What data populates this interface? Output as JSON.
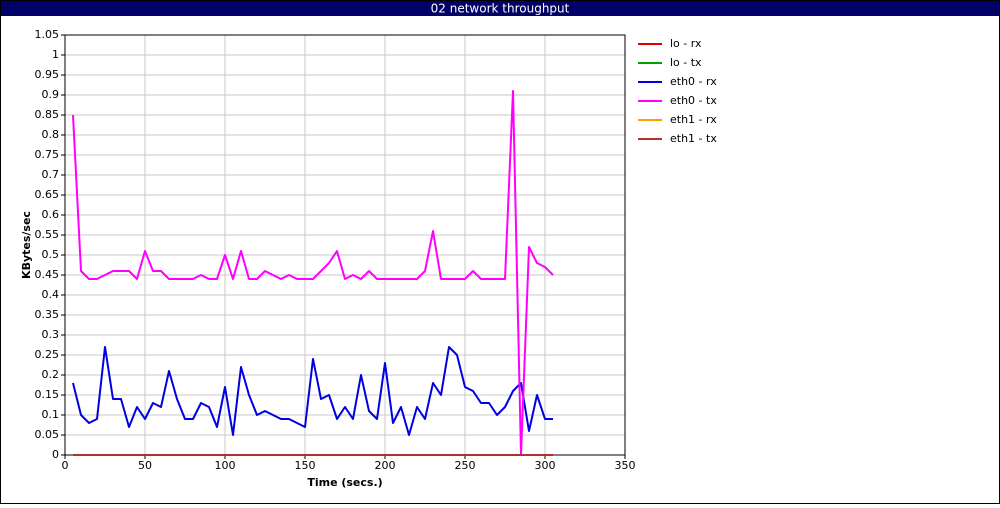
{
  "chart_data": {
    "type": "line",
    "title": "02 network throughput",
    "x_label": "Time (secs.)",
    "y_label": "KBytes/sec",
    "x": [
      5,
      10,
      15,
      20,
      25,
      30,
      35,
      40,
      45,
      50,
      55,
      60,
      65,
      70,
      75,
      80,
      85,
      90,
      95,
      100,
      105,
      110,
      115,
      120,
      125,
      130,
      135,
      140,
      145,
      150,
      155,
      160,
      165,
      170,
      175,
      180,
      185,
      190,
      195,
      200,
      205,
      210,
      215,
      220,
      225,
      230,
      235,
      240,
      245,
      250,
      255,
      260,
      265,
      270,
      275,
      280,
      285,
      290,
      295,
      300,
      305
    ],
    "series": [
      {
        "name": "lo - rx",
        "color": "#e00000",
        "values": [
          0,
          0,
          0,
          0,
          0,
          0,
          0,
          0,
          0,
          0,
          0,
          0,
          0,
          0,
          0,
          0,
          0,
          0,
          0,
          0,
          0,
          0,
          0,
          0,
          0,
          0,
          0,
          0,
          0,
          0,
          0,
          0,
          0,
          0,
          0,
          0,
          0,
          0,
          0,
          0,
          0,
          0,
          0,
          0,
          0,
          0,
          0,
          0,
          0,
          0,
          0,
          0,
          0,
          0,
          0,
          0,
          0,
          0,
          0,
          0,
          0
        ]
      },
      {
        "name": "lo - tx",
        "color": "#00a000",
        "values": [
          0,
          0,
          0,
          0,
          0,
          0,
          0,
          0,
          0,
          0,
          0,
          0,
          0,
          0,
          0,
          0,
          0,
          0,
          0,
          0,
          0,
          0,
          0,
          0,
          0,
          0,
          0,
          0,
          0,
          0,
          0,
          0,
          0,
          0,
          0,
          0,
          0,
          0,
          0,
          0,
          0,
          0,
          0,
          0,
          0,
          0,
          0,
          0,
          0,
          0,
          0,
          0,
          0,
          0,
          0,
          0,
          0,
          0,
          0,
          0,
          0
        ]
      },
      {
        "name": "eth0 - rx",
        "color": "#0000e0",
        "values": [
          0.18,
          0.1,
          0.08,
          0.09,
          0.27,
          0.14,
          0.14,
          0.07,
          0.12,
          0.09,
          0.13,
          0.12,
          0.21,
          0.14,
          0.09,
          0.09,
          0.13,
          0.12,
          0.07,
          0.17,
          0.05,
          0.22,
          0.15,
          0.1,
          0.11,
          0.1,
          0.09,
          0.09,
          0.08,
          0.07,
          0.24,
          0.14,
          0.15,
          0.09,
          0.12,
          0.09,
          0.2,
          0.11,
          0.09,
          0.23,
          0.08,
          0.12,
          0.05,
          0.12,
          0.09,
          0.18,
          0.15,
          0.27,
          0.25,
          0.17,
          0.16,
          0.13,
          0.13,
          0.1,
          0.12,
          0.16,
          0.18,
          0.06,
          0.15,
          0.09,
          0.09
        ]
      },
      {
        "name": "eth0 - tx",
        "color": "#ff00ff",
        "values": [
          0.85,
          0.46,
          0.44,
          0.44,
          0.45,
          0.46,
          0.46,
          0.46,
          0.44,
          0.51,
          0.46,
          0.46,
          0.44,
          0.44,
          0.44,
          0.44,
          0.45,
          0.44,
          0.44,
          0.5,
          0.44,
          0.51,
          0.44,
          0.44,
          0.46,
          0.45,
          0.44,
          0.45,
          0.44,
          0.44,
          0.44,
          0.46,
          0.48,
          0.51,
          0.44,
          0.45,
          0.44,
          0.46,
          0.44,
          0.44,
          0.44,
          0.44,
          0.44,
          0.44,
          0.46,
          0.56,
          0.44,
          0.44,
          0.44,
          0.44,
          0.46,
          0.44,
          0.44,
          0.44,
          0.44,
          0.91,
          0,
          0.52,
          0.48,
          0.47,
          0.45
        ]
      },
      {
        "name": "eth1 - rx",
        "color": "#ffa000",
        "values": [
          0,
          0,
          0,
          0,
          0,
          0,
          0,
          0,
          0,
          0,
          0,
          0,
          0,
          0,
          0,
          0,
          0,
          0,
          0,
          0,
          0,
          0,
          0,
          0,
          0,
          0,
          0,
          0,
          0,
          0,
          0,
          0,
          0,
          0,
          0,
          0,
          0,
          0,
          0,
          0,
          0,
          0,
          0,
          0,
          0,
          0,
          0,
          0,
          0,
          0,
          0,
          0,
          0,
          0,
          0,
          0,
          0,
          0,
          0,
          0,
          0
        ]
      },
      {
        "name": "eth1 - tx",
        "color": "#b03030",
        "values": [
          0,
          0,
          0,
          0,
          0,
          0,
          0,
          0,
          0,
          0,
          0,
          0,
          0,
          0,
          0,
          0,
          0,
          0,
          0,
          0,
          0,
          0,
          0,
          0,
          0,
          0,
          0,
          0,
          0,
          0,
          0,
          0,
          0,
          0,
          0,
          0,
          0,
          0,
          0,
          0,
          0,
          0,
          0,
          0,
          0,
          0,
          0,
          0,
          0,
          0,
          0,
          0,
          0,
          0,
          0,
          0,
          0,
          0,
          0,
          0,
          0
        ]
      }
    ],
    "xlim": [
      0,
      350
    ],
    "xticks": [
      0,
      50,
      100,
      150,
      200,
      250,
      300,
      350
    ],
    "ylim": [
      0,
      1.05
    ],
    "yticks": [
      0,
      0.05,
      0.1,
      0.15,
      0.2,
      0.25,
      0.3,
      0.35,
      0.4,
      0.45,
      0.5,
      0.55,
      0.6,
      0.65,
      0.7,
      0.75,
      0.8,
      0.85,
      0.9,
      0.95,
      1,
      1.05
    ],
    "grid": true,
    "legend": "right"
  }
}
